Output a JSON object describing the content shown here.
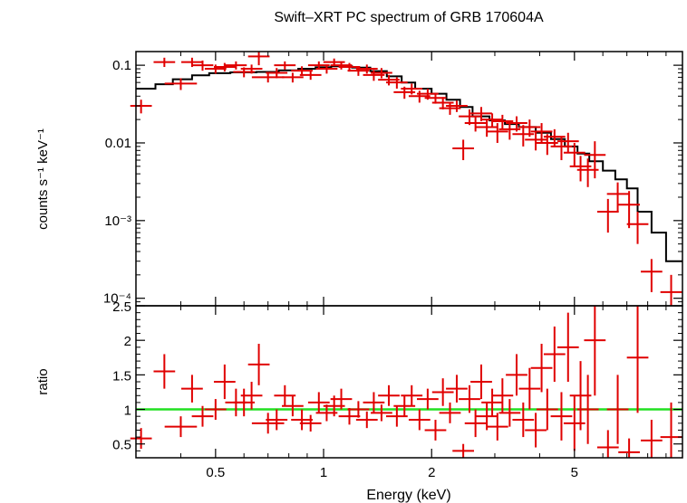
{
  "chart_data": [
    {
      "type": "scatter",
      "title": "Swift–XRT PC spectrum of GRB 170604A",
      "ylabel": "counts s⁻¹ keV⁻¹",
      "xlabel": "",
      "x_scale": "log",
      "y_scale": "log",
      "xlim": [
        0.3,
        10
      ],
      "ylim": [
        8e-05,
        0.15
      ],
      "y_ticks": [
        {
          "value": 0.1,
          "label": "0.1"
        },
        {
          "value": 0.01,
          "label": "0.01"
        },
        {
          "value": 0.001,
          "label": "10⁻³"
        },
        {
          "value": 0.0001,
          "label": "10⁻⁴"
        }
      ],
      "model_step": [
        [
          0.3,
          0.05
        ],
        [
          0.34,
          0.057
        ],
        [
          0.38,
          0.066
        ],
        [
          0.43,
          0.074
        ],
        [
          0.48,
          0.079
        ],
        [
          0.55,
          0.081
        ],
        [
          0.65,
          0.082
        ],
        [
          0.75,
          0.086
        ],
        [
          0.85,
          0.09
        ],
        [
          0.95,
          0.094
        ],
        [
          1.05,
          0.097
        ],
        [
          1.2,
          0.093
        ],
        [
          1.35,
          0.084
        ],
        [
          1.5,
          0.072
        ],
        [
          1.65,
          0.06
        ],
        [
          1.8,
          0.05
        ],
        [
          2.0,
          0.043
        ],
        [
          2.2,
          0.036
        ],
        [
          2.4,
          0.029
        ],
        [
          2.6,
          0.022
        ],
        [
          2.9,
          0.0195
        ],
        [
          3.2,
          0.0175
        ],
        [
          3.5,
          0.016
        ],
        [
          3.9,
          0.0135
        ],
        [
          4.3,
          0.0112
        ],
        [
          4.7,
          0.009
        ],
        [
          5.1,
          0.0073
        ],
        [
          5.5,
          0.0058
        ],
        [
          6.0,
          0.0044
        ],
        [
          6.5,
          0.0034
        ],
        [
          7.0,
          0.0026
        ],
        [
          7.5,
          0.0013
        ],
        [
          8.2,
          0.0007
        ],
        [
          9.0,
          0.0003
        ],
        [
          10.0,
          0.0003
        ]
      ],
      "series": [
        {
          "points": [
            [
              0.31,
              0.03,
              0.01,
              0.006
            ],
            [
              0.36,
              0.11,
              0.01,
              0.015
            ],
            [
              0.4,
              0.058,
              0.015,
              0.01
            ],
            [
              0.43,
              0.11,
              0.01,
              0.015
            ],
            [
              0.46,
              0.1,
              0.01,
              0.015
            ],
            [
              0.5,
              0.09,
              0.01,
              0.012
            ],
            [
              0.53,
              0.095,
              0.01,
              0.012
            ],
            [
              0.57,
              0.1,
              0.01,
              0.012
            ],
            [
              0.6,
              0.082,
              0.01,
              0.012
            ],
            [
              0.63,
              0.09,
              0.01,
              0.012
            ],
            [
              0.66,
              0.13,
              0.01,
              0.03
            ],
            [
              0.7,
              0.07,
              0.015,
              0.01
            ],
            [
              0.74,
              0.08,
              0.01,
              0.012
            ],
            [
              0.78,
              0.1,
              0.01,
              0.012
            ],
            [
              0.82,
              0.07,
              0.01,
              0.01
            ],
            [
              0.87,
              0.085,
              0.01,
              0.012
            ],
            [
              0.92,
              0.075,
              0.01,
              0.01
            ],
            [
              0.97,
              0.1,
              0.01,
              0.012
            ],
            [
              1.02,
              0.09,
              0.01,
              0.012
            ],
            [
              1.07,
              0.11,
              0.01,
              0.012
            ],
            [
              1.12,
              0.1,
              0.01,
              0.012
            ],
            [
              1.18,
              0.095,
              0.01,
              0.012
            ],
            [
              1.25,
              0.085,
              0.01,
              0.012
            ],
            [
              1.32,
              0.09,
              0.01,
              0.012
            ],
            [
              1.38,
              0.075,
              0.01,
              0.012
            ],
            [
              1.45,
              0.08,
              0.01,
              0.012
            ],
            [
              1.52,
              0.065,
              0.01,
              0.01
            ],
            [
              1.6,
              0.06,
              0.01,
              0.01
            ],
            [
              1.68,
              0.045,
              0.01,
              0.008
            ],
            [
              1.76,
              0.05,
              0.01,
              0.008
            ],
            [
              1.85,
              0.04,
              0.01,
              0.007
            ],
            [
              1.95,
              0.043,
              0.01,
              0.007
            ],
            [
              2.05,
              0.038,
              0.01,
              0.006
            ],
            [
              2.15,
              0.033,
              0.01,
              0.006
            ],
            [
              2.25,
              0.028,
              0.01,
              0.005
            ],
            [
              2.35,
              0.03,
              0.01,
              0.005
            ],
            [
              2.45,
              0.0085,
              0.01,
              0.0025
            ],
            [
              2.55,
              0.022,
              0.01,
              0.005
            ],
            [
              2.65,
              0.018,
              0.01,
              0.004
            ],
            [
              2.75,
              0.024,
              0.01,
              0.005
            ],
            [
              2.85,
              0.016,
              0.01,
              0.004
            ],
            [
              2.95,
              0.02,
              0.01,
              0.004
            ],
            [
              3.05,
              0.014,
              0.01,
              0.004
            ],
            [
              3.15,
              0.019,
              0.01,
              0.004
            ],
            [
              3.3,
              0.015,
              0.01,
              0.004
            ],
            [
              3.45,
              0.018,
              0.01,
              0.004
            ],
            [
              3.6,
              0.013,
              0.01,
              0.004
            ],
            [
              3.75,
              0.016,
              0.01,
              0.004
            ],
            [
              3.9,
              0.011,
              0.01,
              0.003
            ],
            [
              4.05,
              0.014,
              0.01,
              0.004
            ],
            [
              4.2,
              0.01,
              0.01,
              0.003
            ],
            [
              4.4,
              0.012,
              0.01,
              0.003
            ],
            [
              4.6,
              0.009,
              0.01,
              0.003
            ],
            [
              4.8,
              0.0105,
              0.01,
              0.003
            ],
            [
              5.0,
              0.0075,
              0.01,
              0.0025
            ],
            [
              5.2,
              0.005,
              0.01,
              0.0018
            ],
            [
              5.45,
              0.0045,
              0.01,
              0.0018
            ],
            [
              5.7,
              0.007,
              0.01,
              0.0035
            ],
            [
              6.2,
              0.0013,
              0.01,
              0.0006
            ],
            [
              6.6,
              0.0022,
              0.01,
              0.0009
            ],
            [
              7.1,
              0.0016,
              0.01,
              0.0008
            ],
            [
              7.5,
              0.0009,
              0.01,
              0.0004
            ],
            [
              8.2,
              0.00022,
              0.01,
              0.0001
            ],
            [
              9.3,
              0.00012,
              0.01,
              8e-05
            ]
          ]
        }
      ]
    },
    {
      "type": "scatter",
      "title": "",
      "xlabel": "Energy (keV)",
      "ylabel": "ratio",
      "x_scale": "log",
      "y_scale": "linear",
      "xlim": [
        0.3,
        10
      ],
      "ylim": [
        0.3,
        2.5
      ],
      "x_ticks": [
        {
          "value": 0.5,
          "label": "0.5"
        },
        {
          "value": 1,
          "label": "1"
        },
        {
          "value": 2,
          "label": "2"
        },
        {
          "value": 5,
          "label": "5"
        }
      ],
      "y_ticks": [
        {
          "value": 0.5,
          "label": "0.5"
        },
        {
          "value": 1,
          "label": "1"
        },
        {
          "value": 1.5,
          "label": "1.5"
        },
        {
          "value": 2,
          "label": "2"
        },
        {
          "value": 2.5,
          "label": "2.5"
        }
      ],
      "reference_line": {
        "y": 1,
        "color": "#22e022"
      },
      "series": [
        {
          "points": [
            [
              0.31,
              0.58,
              0.01,
              0.15
            ],
            [
              0.36,
              1.55,
              0.01,
              0.25
            ],
            [
              0.4,
              0.75,
              0.015,
              0.15
            ],
            [
              0.43,
              1.3,
              0.01,
              0.2
            ],
            [
              0.46,
              0.9,
              0.01,
              0.15
            ],
            [
              0.5,
              1.0,
              0.01,
              0.15
            ],
            [
              0.53,
              1.4,
              0.01,
              0.25
            ],
            [
              0.57,
              1.1,
              0.01,
              0.2
            ],
            [
              0.6,
              1.1,
              0.01,
              0.2
            ],
            [
              0.63,
              1.2,
              0.01,
              0.2
            ],
            [
              0.66,
              1.65,
              0.01,
              0.3
            ],
            [
              0.7,
              0.8,
              0.015,
              0.15
            ],
            [
              0.74,
              0.85,
              0.01,
              0.15
            ],
            [
              0.78,
              1.2,
              0.01,
              0.15
            ],
            [
              0.82,
              1.05,
              0.01,
              0.15
            ],
            [
              0.87,
              0.85,
              0.01,
              0.15
            ],
            [
              0.92,
              0.8,
              0.01,
              0.12
            ],
            [
              0.97,
              1.1,
              0.01,
              0.15
            ],
            [
              1.02,
              0.95,
              0.01,
              0.12
            ],
            [
              1.07,
              1.05,
              0.01,
              0.15
            ],
            [
              1.12,
              1.15,
              0.01,
              0.15
            ],
            [
              1.18,
              0.9,
              0.01,
              0.12
            ],
            [
              1.25,
              1.0,
              0.01,
              0.12
            ],
            [
              1.32,
              0.85,
              0.01,
              0.12
            ],
            [
              1.38,
              1.1,
              0.01,
              0.15
            ],
            [
              1.45,
              0.95,
              0.01,
              0.12
            ],
            [
              1.52,
              1.2,
              0.01,
              0.15
            ],
            [
              1.6,
              0.9,
              0.01,
              0.15
            ],
            [
              1.68,
              1.05,
              0.01,
              0.15
            ],
            [
              1.76,
              1.2,
              0.01,
              0.15
            ],
            [
              1.85,
              0.85,
              0.01,
              0.15
            ],
            [
              1.95,
              1.15,
              0.01,
              0.15
            ],
            [
              2.05,
              0.7,
              0.01,
              0.15
            ],
            [
              2.15,
              1.25,
              0.01,
              0.2
            ],
            [
              2.25,
              0.95,
              0.01,
              0.15
            ],
            [
              2.35,
              1.3,
              0.01,
              0.2
            ],
            [
              2.45,
              0.4,
              0.01,
              0.1
            ],
            [
              2.55,
              1.15,
              0.01,
              0.2
            ],
            [
              2.65,
              0.8,
              0.01,
              0.2
            ],
            [
              2.75,
              1.4,
              0.01,
              0.25
            ],
            [
              2.85,
              0.9,
              0.01,
              0.2
            ],
            [
              2.95,
              1.1,
              0.01,
              0.2
            ],
            [
              3.05,
              0.75,
              0.01,
              0.2
            ],
            [
              3.15,
              1.2,
              0.01,
              0.25
            ],
            [
              3.3,
              0.95,
              0.01,
              0.2
            ],
            [
              3.45,
              1.5,
              0.01,
              0.3
            ],
            [
              3.6,
              0.85,
              0.01,
              0.25
            ],
            [
              3.75,
              1.3,
              0.01,
              0.3
            ],
            [
              3.9,
              0.7,
              0.01,
              0.25
            ],
            [
              4.05,
              1.6,
              0.01,
              0.35
            ],
            [
              4.2,
              1.0,
              0.01,
              0.3
            ],
            [
              4.4,
              1.8,
              0.01,
              0.4
            ],
            [
              4.6,
              0.9,
              0.01,
              0.35
            ],
            [
              4.8,
              1.9,
              0.01,
              0.5
            ],
            [
              5.0,
              0.8,
              0.01,
              0.4
            ],
            [
              5.2,
              1.2,
              0.01,
              0.5
            ],
            [
              5.45,
              1.0,
              0.01,
              0.5
            ],
            [
              5.7,
              2.0,
              0.01,
              0.8
            ],
            [
              6.2,
              0.45,
              0.01,
              0.25
            ],
            [
              6.6,
              1.0,
              0.01,
              0.5
            ],
            [
              7.1,
              0.38,
              0.01,
              0.2
            ],
            [
              7.5,
              1.75,
              0.01,
              0.8
            ],
            [
              8.2,
              0.55,
              0.01,
              0.3
            ],
            [
              9.3,
              0.6,
              0.01,
              0.5
            ]
          ]
        }
      ]
    }
  ]
}
